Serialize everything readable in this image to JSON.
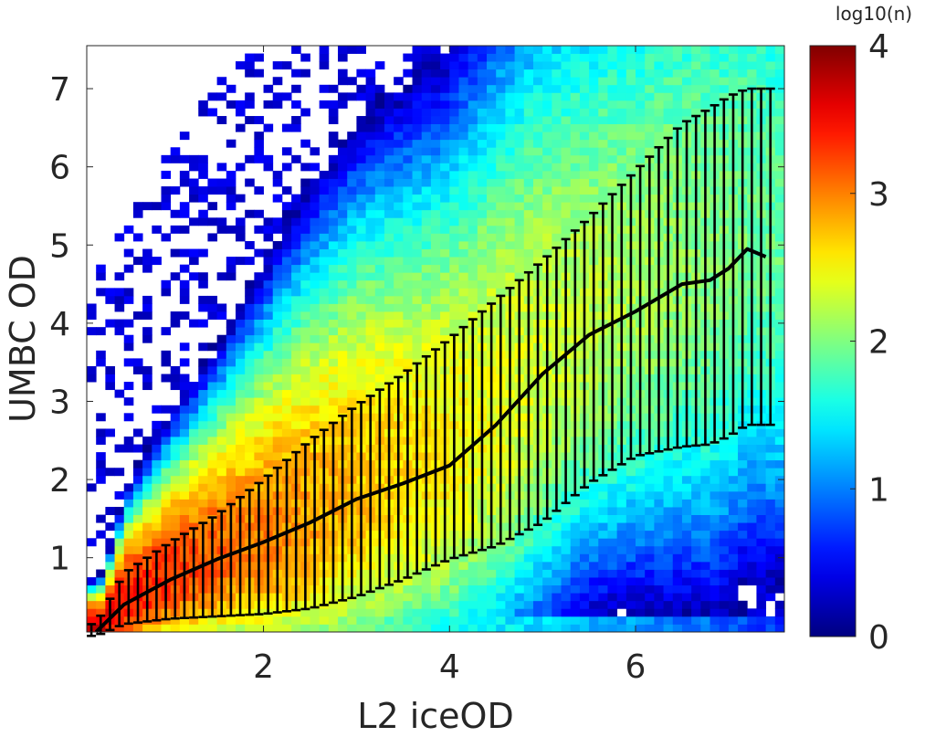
{
  "chart_data": {
    "type": "heatmap",
    "title": "",
    "xlabel": "L2 iceOD",
    "ylabel": "UMBC OD",
    "xlim": [
      0.1,
      7.6
    ],
    "ylim": [
      0.05,
      7.55
    ],
    "xticks": [
      2,
      4,
      6
    ],
    "yticks": [
      1,
      2,
      3,
      4,
      5,
      6,
      7
    ],
    "colorbar": {
      "title": "log10(n)",
      "range": [
        0,
        4
      ],
      "ticks": [
        0,
        1,
        2,
        3,
        4
      ],
      "colormap": "jet"
    },
    "bin_size": 0.1,
    "overlay": {
      "type": "line-errorbar",
      "color": "#000000",
      "x": [
        0.2,
        0.5,
        1.0,
        1.5,
        2.0,
        2.5,
        3.0,
        3.5,
        4.0,
        4.5,
        5.0,
        5.5,
        6.0,
        6.5,
        6.8,
        7.0,
        7.2,
        7.4
      ],
      "mean": [
        0.05,
        0.4,
        0.72,
        0.98,
        1.2,
        1.45,
        1.75,
        1.95,
        2.18,
        2.7,
        3.35,
        3.85,
        4.15,
        4.5,
        4.55,
        4.7,
        4.95,
        4.85
      ],
      "lower": [
        0.0,
        0.15,
        0.22,
        0.25,
        0.28,
        0.35,
        0.5,
        0.72,
        0.98,
        1.15,
        1.45,
        1.95,
        2.3,
        2.42,
        2.45,
        2.55,
        2.7,
        2.7
      ],
      "upper": [
        0.15,
        0.8,
        1.2,
        1.55,
        2.0,
        2.5,
        2.95,
        3.35,
        3.8,
        4.3,
        4.8,
        5.35,
        5.95,
        6.55,
        6.75,
        6.9,
        7.0,
        7.0
      ]
    }
  }
}
